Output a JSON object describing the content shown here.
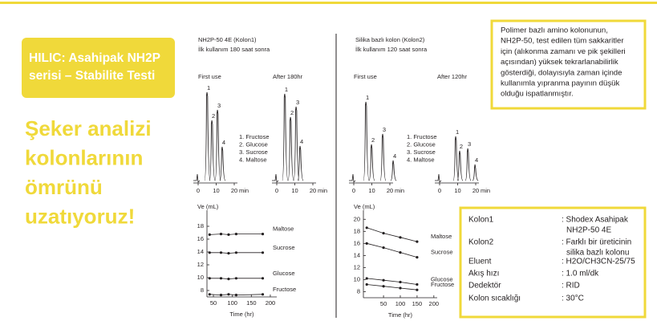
{
  "banner": {
    "lines": [
      "HILIC: Asahipak NH2P",
      "serisi – Stabilite Testi"
    ]
  },
  "headline": {
    "lines": [
      "Şeker analizi",
      "kolonlarının",
      "ömrünü",
      "uzatıyoruz!"
    ]
  },
  "note": {
    "lines": [
      "Polimer bazlı amino kolonunun,",
      "NH2P-50, test edilen tüm sakkaritler",
      "için (alıkonma zamanı ve pik şekilleri",
      "açısından) yüksek tekrarlanabilirlik",
      "gösterdiği, dolayısıyla zaman içinde",
      "kullanımla yıpranma payının düşük",
      "olduğu ispatlanmıştır."
    ]
  },
  "panels": [
    {
      "heading": [
        "NH2P-50 4E (Kolon1)",
        "İlk kullanım   180 saat sonra"
      ],
      "legend": [
        "1. Fructose",
        "2. Glucose",
        "3. Sucrose",
        "4. Maltose"
      ]
    },
    {
      "heading": [
        "Silika bazlı kolon (Kolon2)",
        "İlk kullanım   120 saat sonra"
      ],
      "legend": [
        "1. Fructose",
        "2. Glucose",
        "3. Sucrose",
        "4. Maltose"
      ]
    }
  ],
  "spec_table": {
    "rows": [
      {
        "label": "Kolon1",
        "value": [
          ": Shodex Asahipak",
          "NH2P-50 4E"
        ]
      },
      {
        "label": "Kolon2",
        "value": [
          ": Farklı bir üreticinin",
          "silika bazlı kolonu"
        ]
      },
      {
        "label": "Eluent",
        "value": [
          ": H2O/CH3CN-25/75"
        ]
      },
      {
        "label": "Akış hızı",
        "value": [
          ": 1.0 ml/dk"
        ]
      },
      {
        "label": "Dedektör",
        "value": [
          ": RID"
        ]
      },
      {
        "label": "Kolon sıcaklığı",
        "value": [
          ": 30°C"
        ]
      }
    ]
  },
  "chart_data": [
    {
      "type": "scatter",
      "xlabel": "Time (hr)",
      "ylabel": "Ve (mL)",
      "color": "#231f20",
      "xlim": [
        33,
        217
      ],
      "ylim": [
        7,
        20.5
      ],
      "xticks": [
        50,
        100,
        150,
        200
      ],
      "yticks": [
        8,
        10,
        12,
        14,
        16,
        18
      ],
      "series": [
        {
          "name": "Maltose",
          "x": [
            40,
            70,
            90,
            110,
            180
          ],
          "values": [
            16.7,
            16.8,
            16.7,
            16.8,
            16.8
          ]
        },
        {
          "name": "Sucrose",
          "x": [
            40,
            70,
            90,
            110,
            180
          ],
          "values": [
            13.9,
            13.9,
            13.8,
            13.9,
            13.9
          ]
        },
        {
          "name": "Glucose",
          "x": [
            40,
            70,
            90,
            110,
            180
          ],
          "values": [
            9.9,
            9.9,
            9.8,
            9.9,
            9.9
          ]
        },
        {
          "name": "Fructose",
          "x": [
            40,
            70,
            90,
            110,
            180
          ],
          "values": [
            7.4,
            7.3,
            7.4,
            7.3,
            7.4
          ]
        }
      ]
    },
    {
      "type": "scatter",
      "xlabel": "Time (hr)",
      "ylabel": "Ve (mL)",
      "color": "#231f20",
      "xlim": [
        -10,
        210
      ],
      "ylim": [
        7,
        21.5
      ],
      "xticks": [
        50,
        100,
        150,
        200
      ],
      "yticks": [
        8,
        10,
        12,
        14,
        16,
        18,
        20
      ],
      "series": [
        {
          "name": "Maltose",
          "x": [
            0,
            50,
            100,
            150
          ],
          "values": [
            18.6,
            17.7,
            17,
            16.3
          ]
        },
        {
          "name": "Sucrose",
          "x": [
            0,
            50,
            100,
            150
          ],
          "values": [
            16,
            15.3,
            14.5,
            13.7
          ]
        },
        {
          "name": "Glucose",
          "x": [
            0,
            50,
            100,
            150
          ],
          "values": [
            10.2,
            9.9,
            9.6,
            9.2
          ]
        },
        {
          "name": "Fructose",
          "x": [
            0,
            50,
            100,
            150
          ],
          "values": [
            9.2,
            8.9,
            8.6,
            8.3
          ]
        }
      ]
    },
    {
      "type": "chromatogram",
      "title": "First use",
      "xlabel": "min",
      "xticks": [
        0,
        10,
        20
      ],
      "x": [
        4.9,
        7.6,
        10.7,
        13.3
      ],
      "values": [
        110,
        75,
        88,
        42
      ],
      "peak_labels": [
        "1",
        "2",
        "3",
        "4"
      ]
    },
    {
      "type": "chromatogram",
      "title": "After 180hr",
      "xlabel": "min",
      "xticks": [
        0,
        10,
        20
      ],
      "x": [
        4.4,
        7.6,
        10.7,
        12.9
      ],
      "values": [
        108,
        79,
        92,
        43
      ],
      "peak_labels": [
        "1",
        "2",
        "3",
        "4"
      ]
    },
    {
      "type": "chromatogram",
      "title": "First use",
      "xlabel": "min",
      "xticks": [
        0,
        10,
        20
      ],
      "x": [
        6.7,
        9.8,
        16,
        21.8
      ],
      "values": [
        98,
        45,
        58,
        25
      ],
      "peak_labels": [
        "1",
        "2",
        "3",
        "4"
      ]
    },
    {
      "type": "chromatogram",
      "title": "After 120hr",
      "xlabel": "min",
      "xticks": [
        0,
        10,
        20
      ],
      "x": [
        8.9,
        11.1,
        15.6,
        19.6
      ],
      "values": [
        55,
        37,
        40,
        20
      ],
      "peak_labels": [
        "1",
        "2",
        "3",
        "4"
      ]
    }
  ]
}
